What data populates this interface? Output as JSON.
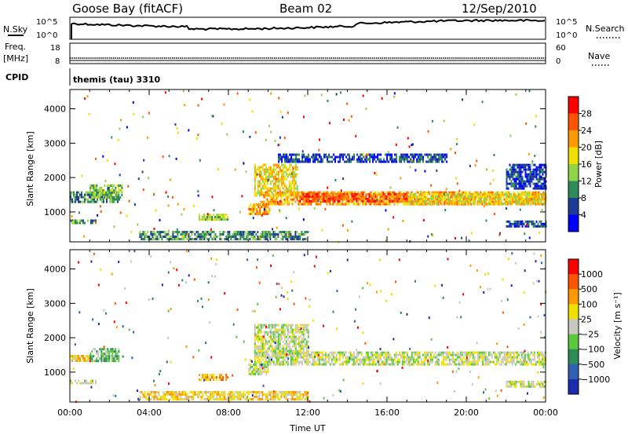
{
  "header": {
    "station": "Goose Bay (fitACF)",
    "beam": "Beam 02",
    "date": "12/Sep/2010"
  },
  "left_labels": {
    "nsky": "N.Sky",
    "freq_line1": "Freq.",
    "freq_line2": "[MHz]",
    "cpid": "CPID"
  },
  "right_labels": {
    "nsearch": "N.Search",
    "nave": "Nave"
  },
  "program": "themis (tau) 3310",
  "chart_data": [
    {
      "type": "line",
      "panel": "noise",
      "series": [
        {
          "name": "N.Sky",
          "x": [
            "00:00",
            "02:00",
            "04:00",
            "06:00",
            "08:00",
            "10:00",
            "12:00",
            "14:00",
            "16:00",
            "18:00",
            "20:00",
            "22:00",
            "00:00"
          ],
          "values_shape": "near top of range, slowly varying"
        }
      ],
      "left_ticks": [
        "10^5",
        "10^0"
      ],
      "right_ticks": [
        "10^5",
        "10^0"
      ]
    },
    {
      "type": "line",
      "panel": "frequency",
      "left_ticks": [
        "18",
        "8"
      ],
      "right_ticks": [
        "60",
        "0"
      ]
    },
    {
      "type": "heatmap",
      "panel": "power",
      "ylabel": "Slant Range [km]",
      "yticks": [
        "1000",
        "2000",
        "3000",
        "4000"
      ],
      "ylim": [
        130,
        4560
      ],
      "xlim_hours": [
        0,
        24
      ],
      "colorbar": {
        "label": "Power [dB]",
        "ticks": [
          "4",
          "8",
          "12",
          "16",
          "20",
          "24",
          "28"
        ],
        "colors": [
          "#0000ff",
          "#1e3c96",
          "#2e8b57",
          "#8fd44b",
          "#f0e000",
          "#ff9900",
          "#ff5500",
          "#ff0000"
        ]
      },
      "blobs": [
        {
          "x0": 9.6,
          "x1": 24.0,
          "r0": 1250,
          "r1": 1600,
          "level": 5
        },
        {
          "x0": 9.3,
          "x1": 11.5,
          "r0": 1500,
          "r1": 2400,
          "level": 4
        },
        {
          "x0": 11.5,
          "x1": 17.0,
          "r0": 1300,
          "r1": 1550,
          "level": 6
        },
        {
          "x0": 17.0,
          "x1": 24.0,
          "r0": 1250,
          "r1": 1550,
          "level": 4
        },
        {
          "x0": 0.0,
          "x1": 2.5,
          "r0": 1300,
          "r1": 1600,
          "level": 2
        },
        {
          "x0": 1.0,
          "x1": 2.6,
          "r0": 1400,
          "r1": 1800,
          "level": 3
        },
        {
          "x0": 0.0,
          "x1": 1.3,
          "r0": 650,
          "r1": 780,
          "level": 2
        },
        {
          "x0": 3.5,
          "x1": 12.0,
          "r0": 180,
          "r1": 450,
          "level": 2
        },
        {
          "x0": 9.0,
          "x1": 10.1,
          "r0": 950,
          "r1": 1250,
          "level": 5
        },
        {
          "x0": 6.5,
          "x1": 8.0,
          "r0": 800,
          "r1": 950,
          "level": 3
        },
        {
          "x0": 10.5,
          "x1": 19.0,
          "r0": 2450,
          "r1": 2700,
          "level": 1
        },
        {
          "x0": 22.0,
          "x1": 24.0,
          "r0": 600,
          "r1": 750,
          "level": 1
        },
        {
          "x0": 22.0,
          "x1": 24.0,
          "r0": 1700,
          "r1": 2400,
          "level": 1
        }
      ]
    },
    {
      "type": "heatmap",
      "panel": "velocity",
      "ylabel": "Slant Range [km]",
      "xlabel": "Time UT",
      "xticks": [
        "00:00",
        "04:00",
        "08:00",
        "12:00",
        "16:00",
        "20:00",
        "00:00"
      ],
      "yticks": [
        "1000",
        "2000",
        "3000",
        "4000"
      ],
      "ylim": [
        130,
        4560
      ],
      "xlim_hours": [
        0,
        24
      ],
      "colorbar": {
        "label": "Velocity [m s⁻¹]",
        "ticks": [
          "1000",
          "500",
          "100",
          "25",
          "−25",
          "−100",
          "−500",
          "−1000"
        ],
        "colors": [
          "#1c2bb0",
          "#3060b0",
          "#2e8b57",
          "#5cc83c",
          "#c8c8c0",
          "#f0e000",
          "#ff9900",
          "#ff5500",
          "#ff0000"
        ]
      },
      "blobs": [
        {
          "x0": 9.3,
          "x1": 24.0,
          "r0": 1250,
          "r1": 1600,
          "level": 4
        },
        {
          "x0": 9.3,
          "x1": 12.0,
          "r0": 1500,
          "r1": 2400,
          "level": 4
        },
        {
          "x0": 0.0,
          "x1": 1.0,
          "r0": 1300,
          "r1": 1500,
          "level": 5
        },
        {
          "x0": 1.0,
          "x1": 2.5,
          "r0": 1300,
          "r1": 1700,
          "level": 3
        },
        {
          "x0": 0.0,
          "x1": 1.3,
          "r0": 650,
          "r1": 780,
          "level": 4
        },
        {
          "x0": 3.5,
          "x1": 12.0,
          "r0": 180,
          "r1": 450,
          "level": 5
        },
        {
          "x0": 6.5,
          "x1": 8.0,
          "r0": 800,
          "r1": 950,
          "level": 6
        },
        {
          "x0": 9.0,
          "x1": 10.0,
          "r0": 950,
          "r1": 1250,
          "level": 4
        },
        {
          "x0": 22.0,
          "x1": 24.0,
          "r0": 600,
          "r1": 750,
          "level": 4
        }
      ]
    }
  ]
}
